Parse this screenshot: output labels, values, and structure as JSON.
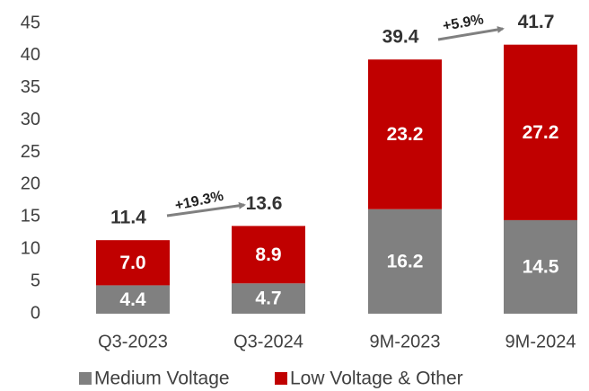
{
  "chart_data": {
    "type": "stacked_bar",
    "categories": [
      "Q3-2023",
      "Q3-2024",
      "9M-2023",
      "9M-2024"
    ],
    "series": [
      {
        "name": "Medium Voltage",
        "color": "#808080",
        "values": [
          4.4,
          4.7,
          16.2,
          14.5
        ],
        "value_labels": [
          "4.4",
          "4.7",
          "16.2",
          "14.5"
        ]
      },
      {
        "name": "Low Voltage & Other",
        "color": "#c00000",
        "values": [
          7.0,
          8.9,
          23.2,
          27.2
        ],
        "value_labels": [
          "7.0",
          "8.9",
          "23.2",
          "27.2"
        ]
      }
    ],
    "totals": [
      11.4,
      13.6,
      39.4,
      41.7
    ],
    "annotations": [
      "+19.3%",
      "+5.9%"
    ],
    "ylim": [
      0,
      45
    ],
    "yticks": [
      0,
      5,
      10,
      15,
      20,
      25,
      30,
      35,
      40,
      45
    ],
    "grid": false,
    "legend": "bottom"
  }
}
